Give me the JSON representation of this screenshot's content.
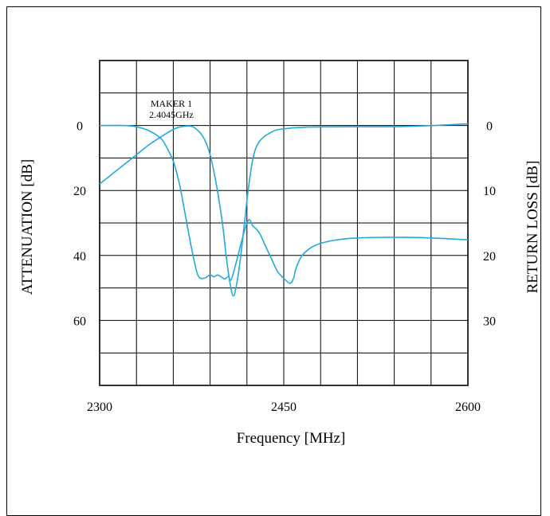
{
  "chart_data": {
    "type": "line",
    "xlabel": "Frequency [MHz]",
    "ylabel_left": "ATTENUATION [dB]",
    "ylabel_right": "RETURN LOSS [dB]",
    "xlim": [
      2300,
      2600
    ],
    "ylim_left": [
      -20,
      80
    ],
    "ylim_right": [
      -10,
      40
    ],
    "x_ticks": [
      2300,
      2450,
      2600
    ],
    "y_ticks_left": [
      0,
      20,
      40,
      60
    ],
    "y_ticks_right": [
      0,
      10,
      20,
      30
    ],
    "grid": true,
    "marker_annotation": {
      "line1": "MAKER 1",
      "line2": "2.4045GHz"
    },
    "line_color": "#22aadd",
    "series": [
      {
        "axis": "left",
        "x": [
          2300,
          2310,
          2320,
          2330,
          2340,
          2350,
          2360,
          2365,
          2370,
          2375,
          2380,
          2385,
          2390,
          2395,
          2400,
          2403,
          2406,
          2409,
          2412,
          2415,
          2418,
          2421,
          2425,
          2430,
          2440,
          2450,
          2470,
          2500,
          2550,
          2600
        ],
        "y": [
          18,
          15,
          12,
          9,
          6,
          3.5,
          1.2,
          0.5,
          0.2,
          0.3,
          1.5,
          4,
          9,
          18,
          30,
          40,
          48,
          52.5,
          48,
          40,
          30,
          20,
          10,
          5,
          2,
          1,
          0.5,
          0.4,
          0.3,
          -0.5
        ]
      },
      {
        "axis": "right",
        "x": [
          2300,
          2320,
          2330,
          2340,
          2350,
          2355,
          2360,
          2365,
          2370,
          2375,
          2380,
          2385,
          2390,
          2393,
          2396,
          2399,
          2402,
          2405,
          2408,
          2420,
          2425,
          2430,
          2435,
          2440,
          2445,
          2450,
          2455,
          2458,
          2460,
          2465,
          2475,
          2490,
          2510,
          2540,
          2570,
          2600
        ],
        "y": [
          0,
          0,
          0.2,
          0.8,
          2,
          3.5,
          5.5,
          9,
          14,
          19,
          23,
          23.5,
          23,
          23.3,
          23,
          23.3,
          23.6,
          23.2,
          23.3,
          15,
          15.5,
          16.5,
          18.5,
          20.5,
          22.5,
          23.5,
          24.3,
          23.5,
          22,
          20,
          18.5,
          17.7,
          17.3,
          17.2,
          17.3,
          17.6
        ]
      }
    ]
  }
}
